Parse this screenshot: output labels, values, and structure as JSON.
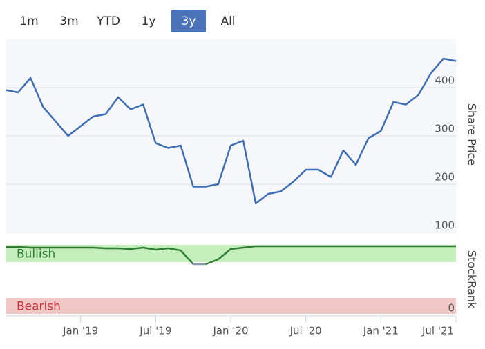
{
  "range_buttons": [
    "1m",
    "3m",
    "YTD",
    "1y",
    "3y",
    "All"
  ],
  "active_button": 4,
  "chart_data": [
    {
      "type": "line",
      "y_label": "Share Price",
      "x": [
        "2018-07",
        "2018-08",
        "2018-09",
        "2018-10",
        "2018-11",
        "2018-12",
        "2019-01",
        "2019-02",
        "2019-03",
        "2019-04",
        "2019-05",
        "2019-06",
        "2019-07",
        "2019-08",
        "2019-09",
        "2019-10",
        "2019-11",
        "2019-12",
        "2020-01",
        "2020-02",
        "2020-03",
        "2020-04",
        "2020-05",
        "2020-06",
        "2020-07",
        "2020-08",
        "2020-09",
        "2020-10",
        "2020-11",
        "2020-12",
        "2021-01",
        "2021-02",
        "2021-03",
        "2021-04",
        "2021-05",
        "2021-06",
        "2021-07"
      ],
      "values": [
        395,
        390,
        420,
        360,
        330,
        300,
        320,
        340,
        345,
        380,
        355,
        365,
        285,
        275,
        280,
        195,
        195,
        200,
        280,
        290,
        160,
        180,
        185,
        205,
        230,
        230,
        215,
        270,
        240,
        295,
        310,
        370,
        365,
        385,
        430,
        460,
        455
      ],
      "color": "#3d6db4",
      "xlim": [
        "2018-07",
        "2021-07"
      ],
      "ylim": [
        100,
        500
      ],
      "yticks": [
        100,
        200,
        300,
        400
      ],
      "grid": true
    },
    {
      "type": "line",
      "y_label": "StockRank",
      "x": [
        "2018-07",
        "2018-08",
        "2018-09",
        "2018-10",
        "2018-11",
        "2018-12",
        "2019-01",
        "2019-02",
        "2019-03",
        "2019-04",
        "2019-05",
        "2019-06",
        "2019-07",
        "2019-08",
        "2019-09",
        "2019-10",
        "2019-11",
        "2019-12",
        "2020-01",
        "2020-02",
        "2020-03",
        "2020-04",
        "2020-05",
        "2020-06",
        "2020-07",
        "2020-08",
        "2020-09",
        "2020-10",
        "2020-11",
        "2020-12",
        "2021-01",
        "2021-02",
        "2021-03",
        "2021-04",
        "2021-05",
        "2021-06",
        "2021-07"
      ],
      "values": [
        97,
        97,
        96,
        96,
        96,
        96,
        96,
        96,
        95,
        95,
        94,
        96,
        93,
        95,
        92,
        72,
        72,
        79,
        94,
        96,
        98,
        98,
        98,
        98,
        98,
        98,
        98,
        98,
        98,
        98,
        98,
        98,
        98,
        98,
        98,
        98,
        98
      ],
      "color": "#2e7d32",
      "below_color": "#8c9aad",
      "bands": [
        {
          "label": "Bullish",
          "from": 75,
          "to": 100,
          "color": "#c4eebb",
          "text_color": "#2e7d32"
        },
        {
          "label": "Bearish",
          "from": 0,
          "to": 23,
          "color": "#f0c9c6",
          "text_color": "#c9303a"
        }
      ],
      "xlim": [
        "2018-07",
        "2021-07"
      ],
      "ylim": [
        0,
        100
      ],
      "yticks": [
        0
      ],
      "xticks": [
        {
          "value": "2019-01",
          "label": "Jan '19"
        },
        {
          "value": "2019-07",
          "label": "Jul '19"
        },
        {
          "value": "2020-01",
          "label": "Jan '20"
        },
        {
          "value": "2020-07",
          "label": "Jul '20"
        },
        {
          "value": "2021-01",
          "label": "Jan '21"
        },
        {
          "value": "2021-07",
          "label": "Jul '21"
        }
      ]
    }
  ]
}
